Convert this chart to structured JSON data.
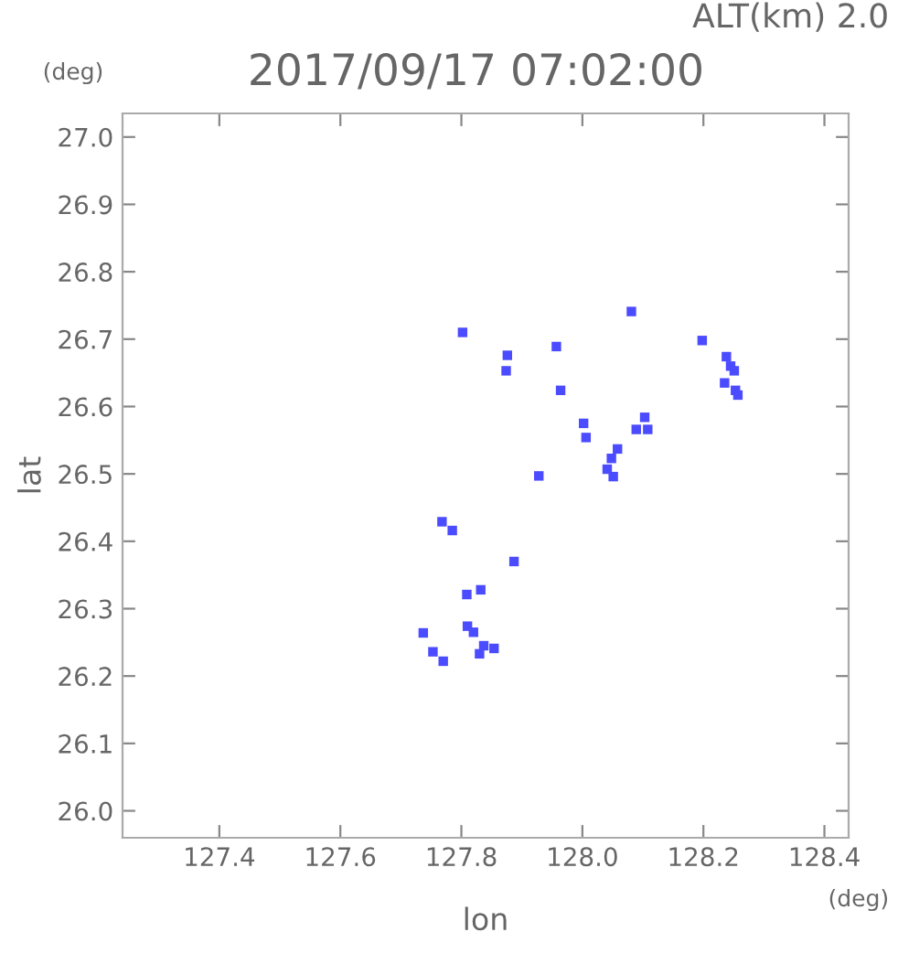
{
  "chart_data": {
    "type": "scatter",
    "title": "2017/09/17 07:02:00",
    "subtitle": "ALT(km) 2.0",
    "xlabel": "lon",
    "ylabel": "lat",
    "annotations": [
      "(deg)",
      "(deg)"
    ],
    "xlim": [
      127.24,
      128.44
    ],
    "ylim": [
      25.96,
      27.035
    ],
    "xticks": [
      127.4,
      127.6,
      127.8,
      {
        "value": 128,
        "label": "128.0"
      },
      128.2,
      128.4
    ],
    "yticks": [
      {
        "value": 26,
        "label": "26.0"
      },
      26.1,
      26.2,
      26.3,
      26.4,
      26.5,
      26.6,
      26.7,
      26.8,
      26.9,
      {
        "value": 27,
        "label": "27.0"
      }
    ],
    "grid": false,
    "marker": "square",
    "series": [
      {
        "color": "#4b4bff",
        "x": [
          127.802,
          127.876,
          127.874,
          127.957,
          127.964,
          128.081,
          128.002,
          128.006,
          127.928,
          128.058,
          128.048,
          128.041,
          128.051,
          128.103,
          128.089,
          128.108,
          128.198,
          128.238,
          128.245,
          128.251,
          128.235,
          128.253,
          128.257,
          127.768,
          127.785,
          127.887,
          127.809,
          127.832,
          127.81,
          127.82,
          127.737,
          127.753,
          127.77,
          127.837,
          127.83,
          127.854
        ],
        "values": [
          26.71,
          26.676,
          26.653,
          26.689,
          26.624,
          26.741,
          26.575,
          26.554,
          26.497,
          26.537,
          26.523,
          26.507,
          26.496,
          26.584,
          26.566,
          26.566,
          26.698,
          26.674,
          26.66,
          26.653,
          26.635,
          26.624,
          26.617,
          26.429,
          26.416,
          26.37,
          26.321,
          26.328,
          26.274,
          26.265,
          26.264,
          26.236,
          26.222,
          26.245,
          26.233,
          26.241
        ]
      }
    ]
  }
}
